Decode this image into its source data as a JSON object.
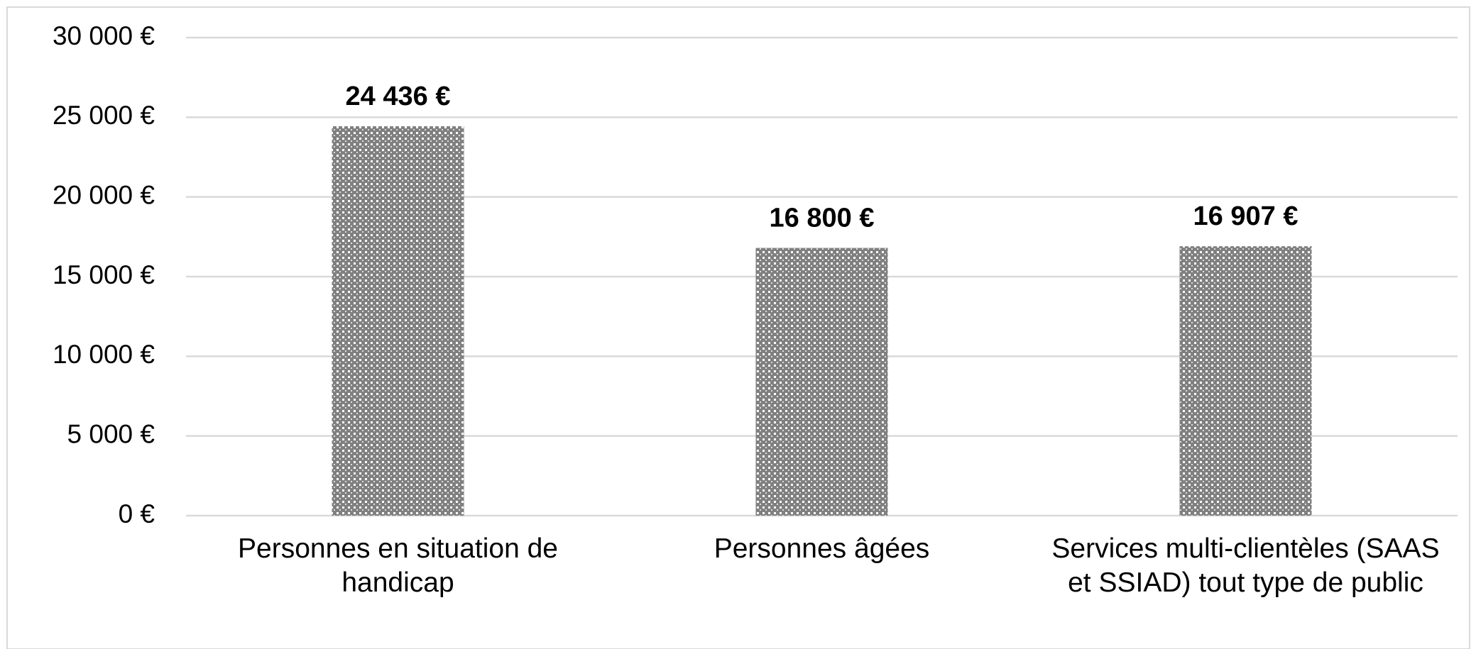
{
  "chart_data": {
    "type": "bar",
    "categories": [
      "Personnes en situation de handicap",
      "Personnes âgées",
      "Services multi-clientèles (SAAS et SSIAD) tout type de public"
    ],
    "values": [
      24436,
      16800,
      16907
    ],
    "value_labels": [
      "24 436 €",
      "16 800 €",
      "16 907 €"
    ],
    "color": "#808080",
    "ylim": [
      0,
      30000
    ],
    "yticks": [
      {
        "value": 0,
        "label": "0 €"
      },
      {
        "value": 5000,
        "label": "5 000 €"
      },
      {
        "value": 10000,
        "label": "10 000 €"
      },
      {
        "value": 15000,
        "label": "15 000 €"
      },
      {
        "value": 20000,
        "label": "20 000 €"
      },
      {
        "value": 25000,
        "label": "25 000 €"
      },
      {
        "value": 30000,
        "label": "30 000 €"
      }
    ],
    "grid": true
  }
}
